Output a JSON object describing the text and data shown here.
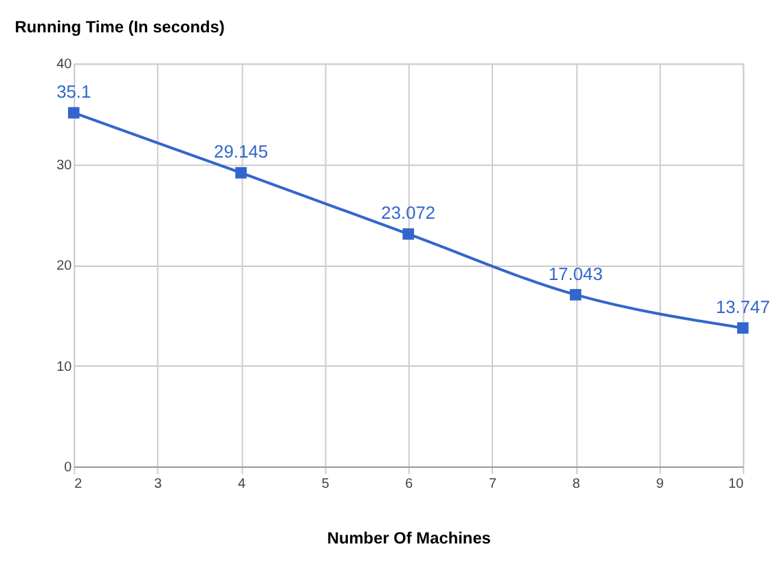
{
  "chart_data": {
    "type": "line",
    "title": "Running Time (In seconds)",
    "xlabel": "Number Of Machines",
    "x": [
      2,
      4,
      6,
      8,
      10
    ],
    "series": [
      {
        "color": "#3366cc",
        "values": [
          35.1,
          29.145,
          23.072,
          17.043,
          13.747
        ]
      }
    ],
    "xlim": [
      2,
      10
    ],
    "xticks": [
      2,
      3,
      4,
      5,
      6,
      7,
      8,
      9,
      10
    ],
    "ylim": [
      0,
      40
    ],
    "yticks": [
      0,
      10,
      20,
      30,
      40
    ],
    "grid": true,
    "marker": "square",
    "line_style": "solid",
    "data_labels": true
  }
}
